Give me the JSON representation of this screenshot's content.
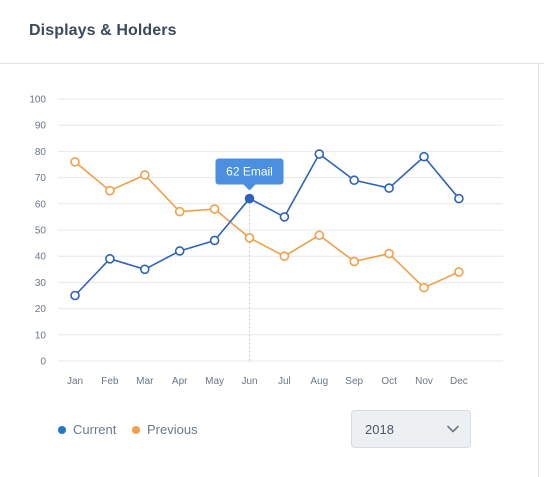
{
  "card": {
    "title": "Displays & Holders"
  },
  "tooltip": {
    "label": "62 Email",
    "series_index": 0,
    "point_index": 5
  },
  "legend": [
    {
      "label": "Current",
      "color": "#1f78c8"
    },
    {
      "label": "Previous",
      "color": "#f0a04b"
    }
  ],
  "year_select": {
    "value": "2018",
    "icon": "chevron-down-icon"
  },
  "colors": {
    "current": "#2e62b8",
    "previous": "#f0a04b",
    "grid": "#e6e9ed",
    "tooltip": "#4a8fe0"
  },
  "chart_data": {
    "type": "line",
    "categories": [
      "Jan",
      "Feb",
      "Mar",
      "Apr",
      "May",
      "Jun",
      "Jul",
      "Aug",
      "Sep",
      "Oct",
      "Nov",
      "Dec"
    ],
    "series": [
      {
        "name": "Current",
        "values": [
          25,
          39,
          35,
          42,
          46,
          62,
          55,
          79,
          69,
          66,
          78,
          62
        ]
      },
      {
        "name": "Previous",
        "values": [
          76,
          65,
          71,
          57,
          58,
          47,
          40,
          48,
          38,
          41,
          28,
          34
        ]
      }
    ],
    "ylim": [
      0,
      100
    ],
    "yticks": [
      0,
      10,
      20,
      30,
      40,
      50,
      60,
      70,
      80,
      90,
      100
    ],
    "grid": true,
    "legend_position": "bottom-left"
  }
}
